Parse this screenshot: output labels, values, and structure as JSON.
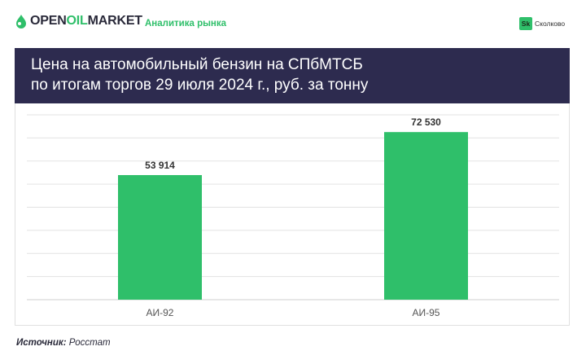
{
  "header": {
    "brand_prefix": "OPEN",
    "brand_oil": "OIL",
    "brand_suffix": "MARKET",
    "section": "Аналитика рынка",
    "partner_badge": "Sk",
    "partner_name": "Сколково"
  },
  "chart_data": {
    "type": "bar",
    "title_line1": "Цена на автомобильный бензин на СПбМТСБ",
    "title_line2": "по итогам торгов 29 июля 2024 г., руб. за тонну",
    "categories": [
      "АИ-92",
      "АИ-95"
    ],
    "values": [
      53914,
      72530
    ],
    "value_labels": [
      "53 914",
      "72 530"
    ],
    "ylim": [
      0,
      80000
    ],
    "grid": true,
    "bar_color": "#2fbf6a"
  },
  "source": {
    "label": "Источник:",
    "text": "Росстат"
  }
}
